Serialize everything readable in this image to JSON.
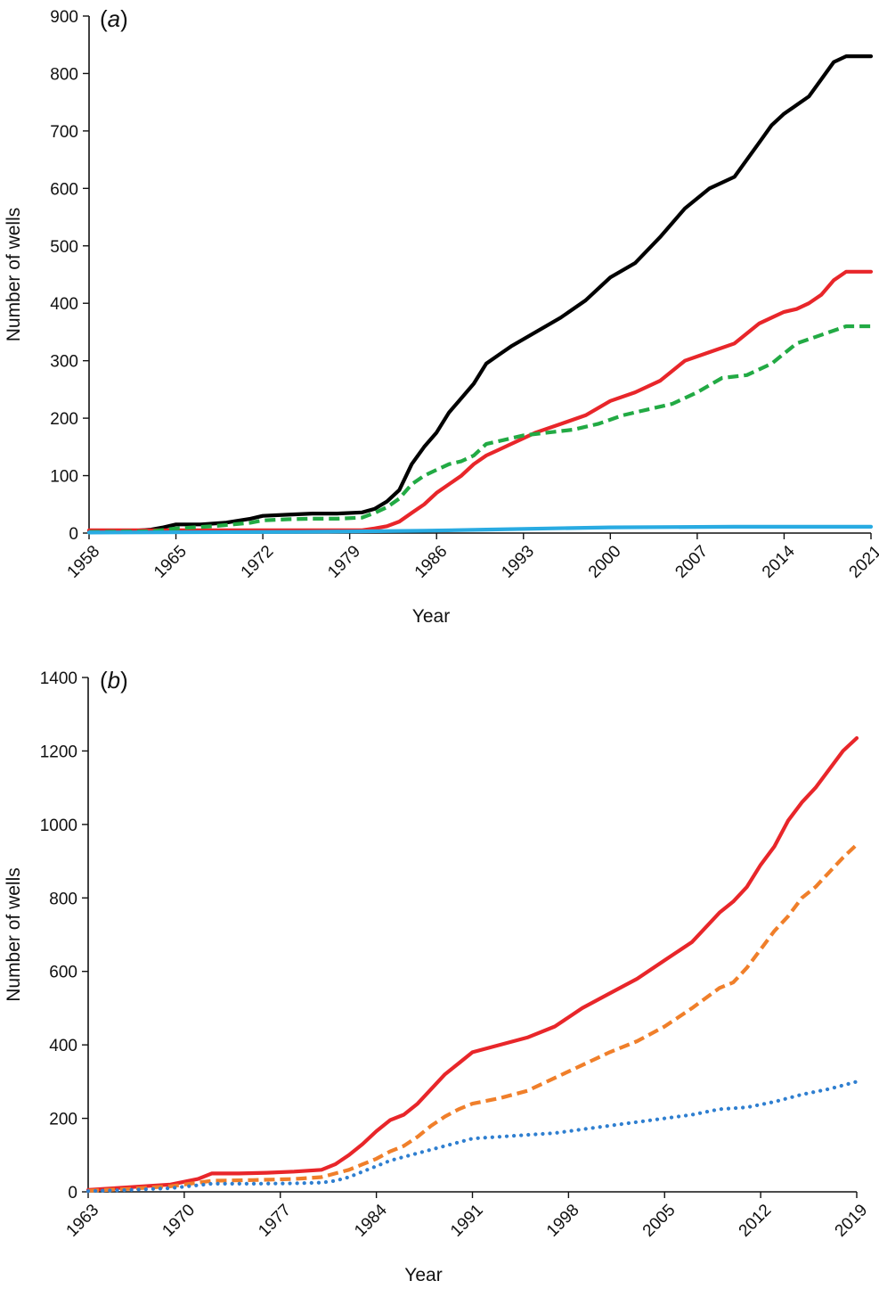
{
  "chart_data": [
    {
      "type": "line",
      "panel_label": "(a)",
      "panel_letter": "a",
      "xlabel": "Year",
      "ylabel": "Number of wells",
      "xlim": [
        1958,
        2021
      ],
      "ylim": [
        0,
        900
      ],
      "xticks": [
        "1958",
        "1965",
        "1972",
        "1979",
        "1986",
        "1993",
        "2000",
        "2007",
        "2014",
        "2021"
      ],
      "yticks": [
        "0",
        "100",
        "200",
        "300",
        "400",
        "500",
        "600",
        "700",
        "800",
        "900"
      ],
      "grid": false,
      "legend": "none",
      "series": [
        {
          "color": "#000000",
          "style": "solid",
          "x": [
            1958,
            1961,
            1963,
            1964,
            1965,
            1967,
            1969,
            1971,
            1972,
            1974,
            1976,
            1978,
            1980,
            1981,
            1982,
            1983,
            1984,
            1985,
            1986,
            1987,
            1988,
            1989,
            1990,
            1991,
            1992,
            1994,
            1996,
            1998,
            2000,
            2002,
            2004,
            2006,
            2008,
            2010,
            2012,
            2013,
            2014,
            2015,
            2016,
            2017,
            2018,
            2019,
            2020,
            2021
          ],
          "values": [
            2,
            3,
            6,
            10,
            15,
            15,
            18,
            25,
            30,
            32,
            34,
            34,
            36,
            42,
            55,
            75,
            120,
            150,
            175,
            210,
            235,
            260,
            295,
            310,
            325,
            350,
            375,
            405,
            445,
            470,
            515,
            565,
            600,
            620,
            680,
            710,
            730,
            745,
            760,
            790,
            820,
            830,
            830,
            830
          ]
        },
        {
          "color": "#e8262a",
          "style": "solid",
          "x": [
            1958,
            1980,
            1981,
            1982,
            1983,
            1984,
            1985,
            1986,
            1987,
            1988,
            1989,
            1990,
            1991,
            1992,
            1994,
            1996,
            1998,
            2000,
            2002,
            2004,
            2006,
            2008,
            2010,
            2012,
            2013,
            2014,
            2015,
            2016,
            2017,
            2018,
            2019,
            2020,
            2021
          ],
          "values": [
            5,
            5,
            8,
            12,
            20,
            35,
            50,
            70,
            85,
            100,
            120,
            135,
            145,
            155,
            175,
            190,
            205,
            230,
            245,
            265,
            300,
            315,
            330,
            365,
            375,
            385,
            390,
            400,
            415,
            440,
            455,
            455,
            455
          ]
        },
        {
          "color": "#22aa44",
          "style": "dashed",
          "x": [
            1958,
            1963,
            1965,
            1968,
            1971,
            1972,
            1974,
            1976,
            1978,
            1980,
            1981,
            1982,
            1983,
            1984,
            1985,
            1986,
            1987,
            1988,
            1989,
            1990,
            1991,
            1993,
            1995,
            1997,
            1999,
            2001,
            2003,
            2005,
            2007,
            2009,
            2011,
            2013,
            2015,
            2017,
            2019,
            2021
          ],
          "values": [
            2,
            3,
            8,
            12,
            18,
            22,
            24,
            25,
            25,
            27,
            35,
            45,
            60,
            85,
            100,
            110,
            120,
            125,
            135,
            155,
            160,
            170,
            175,
            180,
            190,
            205,
            215,
            225,
            245,
            270,
            275,
            295,
            330,
            345,
            360,
            360
          ]
        },
        {
          "color": "#29abe2",
          "style": "solid",
          "x": [
            1958,
            1975,
            1985,
            1990,
            1995,
            2000,
            2010,
            2021
          ],
          "values": [
            1,
            2,
            4,
            6,
            8,
            10,
            11,
            11
          ]
        }
      ]
    },
    {
      "type": "line",
      "panel_label": "(b)",
      "panel_letter": "b",
      "xlabel": "Year",
      "ylabel": "Number of wells",
      "xlim": [
        1963,
        2019
      ],
      "ylim": [
        0,
        1400
      ],
      "xticks": [
        "1963",
        "1970",
        "1977",
        "1984",
        "1991",
        "1998",
        "2005",
        "2012",
        "2019"
      ],
      "yticks": [
        "0",
        "200",
        "400",
        "600",
        "800",
        "1000",
        "1200",
        "1400"
      ],
      "grid": false,
      "legend": "none",
      "series": [
        {
          "color": "#e8262a",
          "style": "solid",
          "x": [
            1963,
            1965,
            1967,
            1969,
            1971,
            1972,
            1974,
            1976,
            1978,
            1980,
            1981,
            1982,
            1983,
            1984,
            1985,
            1986,
            1987,
            1988,
            1989,
            1990,
            1991,
            1993,
            1995,
            1997,
            1999,
            2001,
            2003,
            2005,
            2007,
            2009,
            2010,
            2011,
            2012,
            2013,
            2014,
            2015,
            2016,
            2017,
            2018,
            2019
          ],
          "values": [
            5,
            10,
            15,
            20,
            35,
            50,
            50,
            52,
            55,
            60,
            75,
            100,
            130,
            165,
            195,
            210,
            240,
            280,
            320,
            350,
            380,
            400,
            420,
            450,
            500,
            540,
            580,
            630,
            680,
            760,
            790,
            830,
            890,
            940,
            1010,
            1060,
            1100,
            1150,
            1200,
            1235
          ]
        },
        {
          "color": "#f07f2a",
          "style": "dashed",
          "x": [
            1963,
            1966,
            1969,
            1971,
            1972,
            1975,
            1978,
            1980,
            1981,
            1982,
            1983,
            1984,
            1985,
            1986,
            1987,
            1988,
            1989,
            1990,
            1991,
            1993,
            1995,
            1997,
            1999,
            2001,
            2003,
            2005,
            2007,
            2009,
            2010,
            2011,
            2012,
            2013,
            2014,
            2015,
            2016,
            2017,
            2018,
            2019
          ],
          "values": [
            3,
            8,
            15,
            25,
            30,
            32,
            35,
            40,
            50,
            60,
            75,
            90,
            110,
            125,
            150,
            180,
            205,
            225,
            240,
            255,
            275,
            310,
            345,
            380,
            410,
            450,
            500,
            555,
            570,
            610,
            660,
            710,
            750,
            800,
            830,
            870,
            910,
            945
          ]
        },
        {
          "color": "#2f7fd0",
          "style": "dotted",
          "x": [
            1963,
            1966,
            1969,
            1971,
            1972,
            1975,
            1978,
            1980,
            1981,
            1982,
            1983,
            1984,
            1985,
            1986,
            1987,
            1988,
            1989,
            1990,
            1991,
            1993,
            1995,
            1997,
            1999,
            2001,
            2003,
            2005,
            2007,
            2009,
            2011,
            2013,
            2015,
            2017,
            2019
          ],
          "values": [
            2,
            5,
            10,
            18,
            22,
            22,
            23,
            25,
            30,
            40,
            55,
            70,
            85,
            95,
            105,
            115,
            125,
            135,
            145,
            150,
            155,
            160,
            170,
            180,
            190,
            200,
            210,
            225,
            230,
            245,
            265,
            280,
            300
          ]
        }
      ]
    }
  ]
}
